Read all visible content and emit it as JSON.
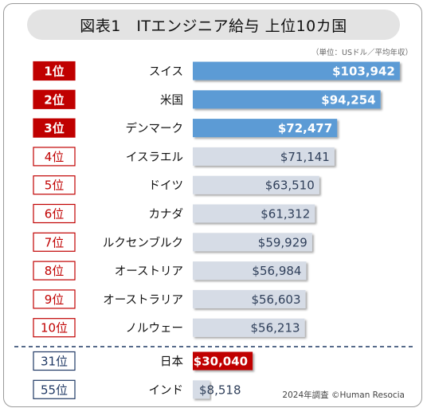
{
  "title": "図表1　ITエンジニア給与 上位10カ国",
  "unit_note": "（単位：USドル／平均年収）",
  "source_note": "2024年調査 ©Human Resocia",
  "colors": {
    "top_bar": "#5b9bd5",
    "other_bar": "#d6dce6",
    "japan_bar": "#c00000",
    "rank_red": "#c00000",
    "rank_navy": "#1f3864",
    "value_dark": "#2f3f5a",
    "divider": "#1f3864"
  },
  "chart_data": {
    "type": "bar",
    "orientation": "horizontal",
    "title": "ITエンジニア給与 上位10カ国",
    "unit": "USドル／平均年収",
    "xlim": [
      0,
      104000
    ],
    "rows": [
      {
        "rank": "1位",
        "country": "スイス",
        "value": 103942,
        "label": "$103,942",
        "style": "top"
      },
      {
        "rank": "2位",
        "country": "米国",
        "value": 94254,
        "label": "$94,254",
        "style": "top"
      },
      {
        "rank": "3位",
        "country": "デンマーク",
        "value": 72477,
        "label": "$72,477",
        "style": "top"
      },
      {
        "rank": "4位",
        "country": "イスラエル",
        "value": 71141,
        "label": "$71,141",
        "style": "other"
      },
      {
        "rank": "5位",
        "country": "ドイツ",
        "value": 63510,
        "label": "$63,510",
        "style": "other"
      },
      {
        "rank": "6位",
        "country": "カナダ",
        "value": 61312,
        "label": "$61,312",
        "style": "other"
      },
      {
        "rank": "7位",
        "country": "ルクセンブルク",
        "value": 59929,
        "label": "$59,929",
        "style": "other"
      },
      {
        "rank": "8位",
        "country": "オーストリア",
        "value": 56984,
        "label": "$56,984",
        "style": "other"
      },
      {
        "rank": "9位",
        "country": "オーストラリア",
        "value": 56603,
        "label": "$56,603",
        "style": "other"
      },
      {
        "rank": "10位",
        "country": "ノルウェー",
        "value": 56213,
        "label": "$56,213",
        "style": "other"
      },
      {
        "rank": "31位",
        "country": "日本",
        "value": 30040,
        "label": "$30,040",
        "style": "japan"
      },
      {
        "rank": "55位",
        "country": "インド",
        "value": 8518,
        "label": "$8,518",
        "style": "low"
      }
    ]
  }
}
